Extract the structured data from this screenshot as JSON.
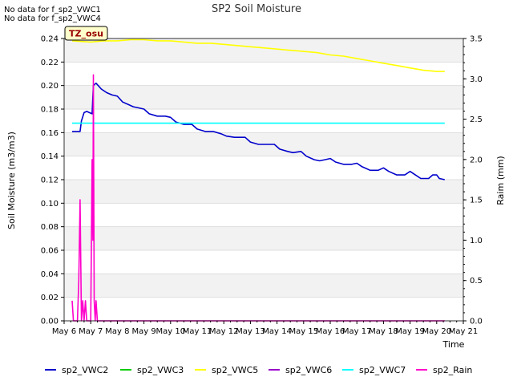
{
  "notices": [
    "No data for f_sp2_VWC1",
    "No data for f_sp2_VWC4"
  ],
  "chart_data": {
    "type": "line",
    "title": "SP2 Soil Moisture",
    "xlabel": "Time",
    "ylabel": "Soil Moisture (m3/m3)",
    "y2label": "Raim (mm)",
    "badge": "TZ_osu",
    "xlim": [
      6,
      21
    ],
    "ylim": [
      0.0,
      0.24
    ],
    "y2lim": [
      0.0,
      3.5
    ],
    "x_ticks": [
      6,
      7,
      8,
      9,
      10,
      11,
      12,
      13,
      14,
      15,
      16,
      17,
      18,
      19,
      20,
      21
    ],
    "x_tick_labels": [
      "May 6",
      "May 7",
      "May 8",
      "May 9",
      "May 10",
      "May 11",
      "May 12",
      "May 13",
      "May 14",
      "May 15",
      "May 16",
      "May 17",
      "May 18",
      "May 19",
      "May 20",
      "May 21"
    ],
    "y_ticks": [
      0.0,
      0.02,
      0.04,
      0.06,
      0.08,
      0.1,
      0.12,
      0.14,
      0.16,
      0.18,
      0.2,
      0.22,
      0.24
    ],
    "y_tick_labels": [
      "0.00",
      "0.02",
      "0.04",
      "0.06",
      "0.08",
      "0.10",
      "0.12",
      "0.14",
      "0.16",
      "0.18",
      "0.20",
      "0.22",
      "0.24"
    ],
    "y2_ticks": [
      0.0,
      0.5,
      1.0,
      1.5,
      2.0,
      2.5,
      3.0,
      3.5
    ],
    "y2_tick_labels": [
      "0.0",
      "0.5",
      "1.0",
      "1.5",
      "2.0",
      "2.5",
      "3.0",
      "3.5"
    ],
    "legend_position": "bottom",
    "series": [
      {
        "name": "sp2_VWC2",
        "color": "#0000cc",
        "axis": "left",
        "points": [
          [
            6.3,
            0.161
          ],
          [
            6.6,
            0.161
          ],
          [
            6.65,
            0.17
          ],
          [
            6.75,
            0.177
          ],
          [
            6.85,
            0.178
          ],
          [
            6.95,
            0.177
          ],
          [
            7.05,
            0.176
          ],
          [
            7.1,
            0.2
          ],
          [
            7.2,
            0.202
          ],
          [
            7.4,
            0.197
          ],
          [
            7.6,
            0.194
          ],
          [
            7.8,
            0.192
          ],
          [
            8.0,
            0.191
          ],
          [
            8.2,
            0.186
          ],
          [
            8.4,
            0.184
          ],
          [
            8.6,
            0.182
          ],
          [
            8.8,
            0.181
          ],
          [
            9.0,
            0.18
          ],
          [
            9.2,
            0.176
          ],
          [
            9.5,
            0.174
          ],
          [
            9.8,
            0.174
          ],
          [
            10.0,
            0.173
          ],
          [
            10.2,
            0.169
          ],
          [
            10.5,
            0.167
          ],
          [
            10.8,
            0.167
          ],
          [
            11.0,
            0.163
          ],
          [
            11.3,
            0.161
          ],
          [
            11.6,
            0.161
          ],
          [
            11.9,
            0.159
          ],
          [
            12.1,
            0.157
          ],
          [
            12.4,
            0.156
          ],
          [
            12.8,
            0.156
          ],
          [
            13.0,
            0.152
          ],
          [
            13.3,
            0.15
          ],
          [
            13.6,
            0.15
          ],
          [
            13.9,
            0.15
          ],
          [
            14.1,
            0.146
          ],
          [
            14.4,
            0.144
          ],
          [
            14.6,
            0.143
          ],
          [
            14.9,
            0.144
          ],
          [
            15.1,
            0.14
          ],
          [
            15.4,
            0.137
          ],
          [
            15.6,
            0.136
          ],
          [
            15.8,
            0.137
          ],
          [
            16.0,
            0.138
          ],
          [
            16.2,
            0.135
          ],
          [
            16.5,
            0.133
          ],
          [
            16.8,
            0.133
          ],
          [
            17.0,
            0.134
          ],
          [
            17.2,
            0.131
          ],
          [
            17.5,
            0.128
          ],
          [
            17.8,
            0.128
          ],
          [
            18.0,
            0.13
          ],
          [
            18.2,
            0.127
          ],
          [
            18.5,
            0.124
          ],
          [
            18.8,
            0.124
          ],
          [
            19.0,
            0.127
          ],
          [
            19.2,
            0.124
          ],
          [
            19.4,
            0.121
          ],
          [
            19.7,
            0.121
          ],
          [
            19.85,
            0.124
          ],
          [
            20.0,
            0.124
          ],
          [
            20.1,
            0.121
          ],
          [
            20.3,
            0.12
          ]
        ]
      },
      {
        "name": "sp2_VWC3",
        "color": "#00cc00",
        "axis": "left",
        "points": []
      },
      {
        "name": "sp2_VWC5",
        "color": "#ffff00",
        "axis": "left",
        "points": [
          [
            6.3,
            0.238
          ],
          [
            7.0,
            0.237
          ],
          [
            7.5,
            0.238
          ],
          [
            8.0,
            0.238
          ],
          [
            8.5,
            0.239
          ],
          [
            9.0,
            0.239
          ],
          [
            9.5,
            0.238
          ],
          [
            10.0,
            0.238
          ],
          [
            10.5,
            0.237
          ],
          [
            11.0,
            0.236
          ],
          [
            11.5,
            0.236
          ],
          [
            12.0,
            0.235
          ],
          [
            12.5,
            0.234
          ],
          [
            13.0,
            0.233
          ],
          [
            13.5,
            0.232
          ],
          [
            14.0,
            0.231
          ],
          [
            14.5,
            0.23
          ],
          [
            15.0,
            0.229
          ],
          [
            15.5,
            0.228
          ],
          [
            16.0,
            0.226
          ],
          [
            16.5,
            0.225
          ],
          [
            17.0,
            0.223
          ],
          [
            17.5,
            0.221
          ],
          [
            18.0,
            0.219
          ],
          [
            18.5,
            0.217
          ],
          [
            19.0,
            0.215
          ],
          [
            19.5,
            0.213
          ],
          [
            20.0,
            0.212
          ],
          [
            20.3,
            0.212
          ]
        ]
      },
      {
        "name": "sp2_VWC6",
        "color": "#9900cc",
        "axis": "left",
        "points": []
      },
      {
        "name": "sp2_VWC7",
        "color": "#00ffff",
        "axis": "left",
        "points": [
          [
            6.3,
            0.168
          ],
          [
            20.3,
            0.168
          ]
        ]
      },
      {
        "name": "sp2_Rain",
        "color": "#ff00cc",
        "axis": "right",
        "points": [
          [
            6.3,
            0.25
          ],
          [
            6.35,
            0.0
          ],
          [
            6.5,
            0.0
          ],
          [
            6.55,
            0.5
          ],
          [
            6.6,
            1.5
          ],
          [
            6.65,
            0.0
          ],
          [
            6.7,
            0.25
          ],
          [
            6.75,
            0.0
          ],
          [
            6.8,
            0.25
          ],
          [
            6.85,
            0.0
          ],
          [
            7.0,
            0.0
          ],
          [
            7.05,
            2.0
          ],
          [
            7.08,
            1.0
          ],
          [
            7.1,
            3.05
          ],
          [
            7.13,
            0.25
          ],
          [
            7.17,
            0.0
          ],
          [
            7.2,
            0.25
          ],
          [
            7.25,
            0.0
          ],
          [
            20.3,
            0.0
          ]
        ]
      }
    ]
  }
}
